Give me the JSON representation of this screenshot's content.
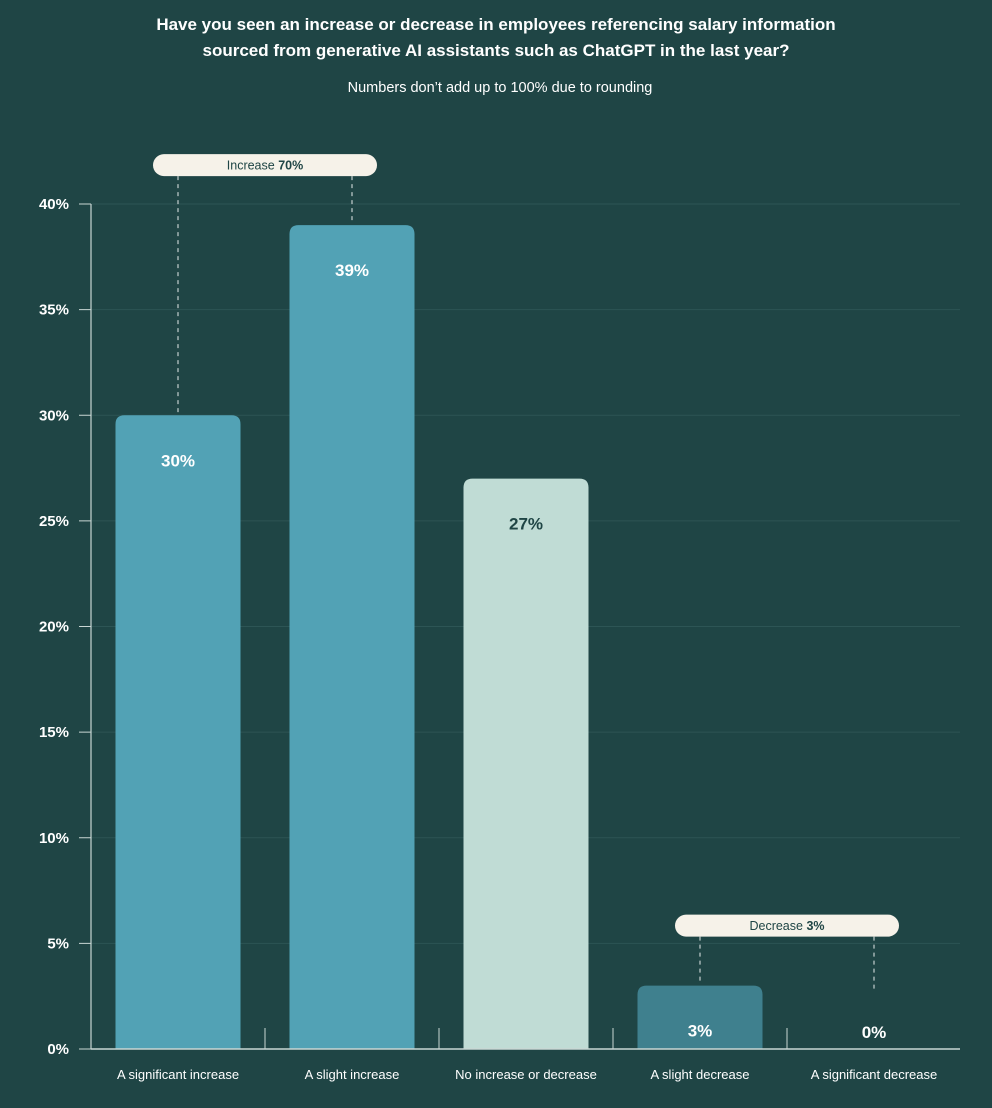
{
  "colors": {
    "background": "#1f4545",
    "bar_increase": "#52a2b5",
    "bar_neutral": "#c0dcd5",
    "bar_decrease": "#3f808e",
    "label_light": "#ffffff",
    "label_dark": "#1f4545",
    "grid": "#2d5555",
    "axis": "#c9d6d4",
    "callout_bg": "#f6f2e9"
  },
  "chart_data": {
    "type": "bar",
    "title_lines": [
      "Have you seen an increase or decrease in employees referencing salary information",
      "sourced from generative AI assistants such as ChatGPT in the last year?"
    ],
    "subtitle": "Numbers don’t add up to 100% due to rounding",
    "categories": [
      "A significant increase",
      "A slight increase",
      "No increase or decrease",
      "A slight decrease",
      "A significant decrease"
    ],
    "values": [
      30,
      39,
      27,
      3,
      0
    ],
    "value_labels": [
      "30%",
      "39%",
      "27%",
      "3%",
      "0%"
    ],
    "bar_colors": [
      "#52a2b5",
      "#52a2b5",
      "#c0dcd5",
      "#3f808e",
      "#3f808e"
    ],
    "label_colors": [
      "#ffffff",
      "#ffffff",
      "#1f4545",
      "#ffffff",
      "#ffffff"
    ],
    "ylim": [
      0,
      40
    ],
    "yticks": [
      0,
      5,
      10,
      15,
      20,
      25,
      30,
      35,
      40
    ],
    "ytick_labels": [
      "0%",
      "5%",
      "10%",
      "15%",
      "20%",
      "25%",
      "30%",
      "35%",
      "40%"
    ],
    "grid": true,
    "groups": [
      {
        "label": "Increase",
        "value": "70%",
        "categories": [
          0,
          1
        ]
      },
      {
        "label": "Decrease",
        "value": "3%",
        "categories": [
          3,
          4
        ]
      }
    ]
  }
}
